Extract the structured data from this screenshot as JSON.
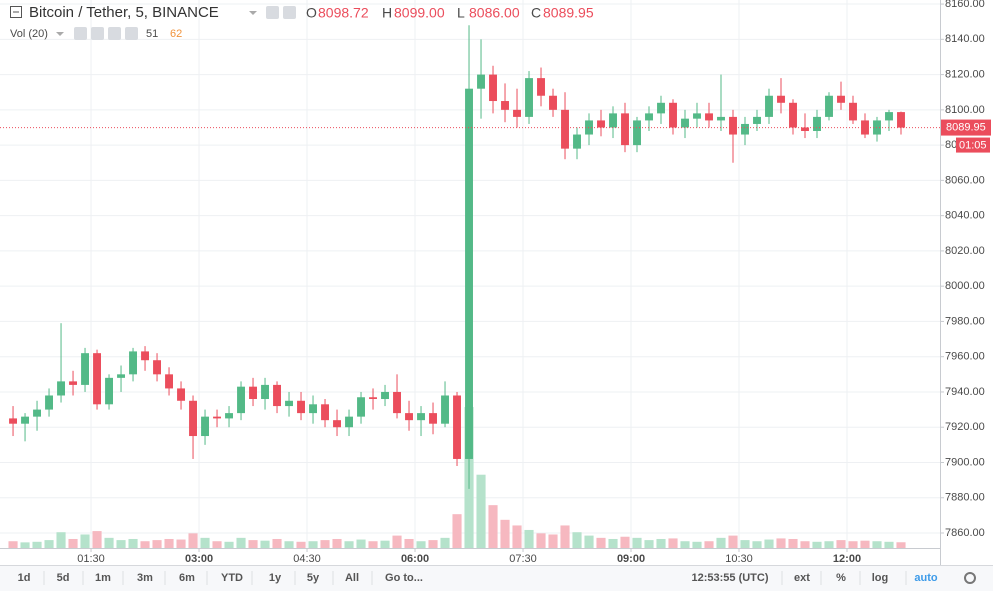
{
  "chart_data": {
    "type": "candlestick",
    "title": "Bitcoin / Tether, 5, BINANCE",
    "ohlc_names": [
      "O",
      "H",
      "L",
      "C"
    ],
    "ohlc_labels": [
      "8098.72",
      "8099.00",
      "8086.00",
      "8089.95"
    ],
    "volume_title": "Vol (20)",
    "volume_ma": 62,
    "countdown": "01:05",
    "up_color": "#53b987",
    "down_color": "#eb4d5c",
    "volume_up_color": "#b5e2cb",
    "volume_down_color": "#f6b8c0",
    "grid": true,
    "xlim": [
      18.3,
      797.5
    ],
    "xticks": [
      {
        "value": 90,
        "label": "01:30"
      },
      {
        "value": 180,
        "label": "03:00"
      },
      {
        "value": 270,
        "label": "04:30"
      },
      {
        "value": 360,
        "label": "06:00"
      },
      {
        "value": 450,
        "label": "07:30"
      },
      {
        "value": 540,
        "label": "09:00"
      },
      {
        "value": 630,
        "label": "10:30"
      },
      {
        "value": 720,
        "label": "12:00"
      }
    ],
    "ylim": [
      7851.5,
      8162.3
    ],
    "yticks": [
      {
        "value": 7860,
        "label": "7860.00"
      },
      {
        "value": 7880,
        "label": "7880.00"
      },
      {
        "value": 7900,
        "label": "7900.00"
      },
      {
        "value": 7920,
        "label": "7920.00"
      },
      {
        "value": 7940,
        "label": "7940.00"
      },
      {
        "value": 7960,
        "label": "7960.00"
      },
      {
        "value": 7980,
        "label": "7980.00"
      },
      {
        "value": 8000,
        "label": "8000.00"
      },
      {
        "value": 8020,
        "label": "8020.00"
      },
      {
        "value": 8040,
        "label": "8040.00"
      },
      {
        "value": 8060,
        "label": "8060.00"
      },
      {
        "value": 8080,
        "label": "8080.00"
      },
      {
        "value": 8100,
        "label": "8100.00"
      },
      {
        "value": 8120,
        "label": "8120.00"
      },
      {
        "value": 8140,
        "label": "8140.00"
      },
      {
        "value": 8160,
        "label": "8160.00"
      }
    ],
    "volume_ylim": [
      0,
      4860
    ],
    "x": [
      25,
      35,
      45,
      55,
      65,
      75,
      85,
      95,
      105,
      115,
      125,
      135,
      145,
      155,
      165,
      175,
      185,
      195,
      205,
      215,
      225,
      235,
      245,
      255,
      265,
      275,
      285,
      295,
      305,
      315,
      325,
      335,
      345,
      355,
      365,
      375,
      385,
      395,
      405,
      415,
      425,
      435,
      445,
      455,
      465,
      475,
      485,
      495,
      505,
      515,
      525,
      535,
      545,
      555,
      565,
      575,
      585,
      595,
      605,
      615,
      625,
      635,
      645,
      655,
      665,
      675,
      685,
      695,
      705,
      715,
      725,
      735,
      745,
      755,
      765
    ],
    "open": [
      7925,
      7922,
      7926,
      7930,
      7938,
      7946,
      7944,
      7962,
      7933,
      7948,
      7950,
      7963,
      7958,
      7950,
      7942,
      7935,
      7915,
      7926,
      7925,
      7928,
      7943,
      7936,
      7944,
      7932,
      7935,
      7928,
      7933,
      7924,
      7920,
      7926,
      7937,
      7936,
      7940,
      7928,
      7924,
      7928,
      7922,
      7938,
      7902,
      8112,
      8120,
      8105,
      8100,
      8096,
      8118,
      8108,
      8100,
      8078,
      8086,
      8094,
      8090,
      8098,
      8080,
      8094,
      8098,
      8104,
      8090,
      8095,
      8098,
      8094,
      8096,
      8086,
      8092,
      8096,
      8108,
      8104,
      8090,
      8088,
      8096,
      8108,
      8104,
      8094,
      8086,
      8094,
      8098.72
    ],
    "high": [
      7932,
      7928,
      7935,
      7942,
      7979,
      7952,
      7965,
      7964,
      7950,
      7955,
      7965,
      7966,
      7962,
      7954,
      7946,
      7938,
      7930,
      7930,
      7932,
      7946,
      7948,
      7948,
      7946,
      7940,
      7940,
      7938,
      7936,
      7930,
      7930,
      7940,
      7942,
      7944,
      7950,
      7935,
      7932,
      7934,
      7946,
      7940,
      8148,
      8140,
      8125,
      8115,
      8112,
      8122,
      8124,
      8112,
      8110,
      8090,
      8098,
      8100,
      8102,
      8104,
      8096,
      8102,
      8108,
      8106,
      8100,
      8104,
      8104,
      8120,
      8100,
      8096,
      8100,
      8112,
      8118,
      8106,
      8098,
      8100,
      8110,
      8116,
      8108,
      8098,
      8096,
      8100,
      8099
    ],
    "low": [
      7915,
      7912,
      7918,
      7926,
      7934,
      7938,
      7940,
      7930,
      7930,
      7940,
      7946,
      7952,
      7946,
      7938,
      7930,
      7902,
      7910,
      7920,
      7920,
      7924,
      7932,
      7930,
      7928,
      7926,
      7924,
      7922,
      7920,
      7915,
      7915,
      7922,
      7930,
      7932,
      7925,
      7918,
      7915,
      7916,
      7920,
      7898,
      7885,
      8095,
      8098,
      8093,
      8090,
      8092,
      8102,
      8096,
      8072,
      8072,
      8080,
      8085,
      8084,
      8076,
      8076,
      8088,
      8092,
      8086,
      8084,
      8090,
      8090,
      8088,
      8070,
      8080,
      8088,
      8092,
      8098,
      8086,
      8084,
      8084,
      8094,
      8100,
      8092,
      8084,
      8082,
      8088,
      8086
    ],
    "close": [
      7922,
      7926,
      7930,
      7938,
      7946,
      7944,
      7962,
      7933,
      7948,
      7950,
      7963,
      7958,
      7950,
      7942,
      7935,
      7915,
      7926,
      7925,
      7928,
      7943,
      7936,
      7944,
      7932,
      7935,
      7928,
      7933,
      7924,
      7920,
      7926,
      7937,
      7936,
      7940,
      7928,
      7924,
      7928,
      7922,
      7938,
      7902,
      8112,
      8120,
      8105,
      8100,
      8096,
      8118,
      8108,
      8100,
      8078,
      8086,
      8094,
      8090,
      8098,
      8080,
      8094,
      8098,
      8104,
      8090,
      8095,
      8098,
      8094,
      8096,
      8086,
      8092,
      8096,
      8108,
      8104,
      8090,
      8088,
      8096,
      8108,
      8104,
      8094,
      8086,
      8094,
      8098.72,
      8089.95
    ],
    "volume": [
      60,
      50,
      55,
      70,
      140,
      80,
      120,
      150,
      90,
      70,
      80,
      60,
      70,
      80,
      75,
      130,
      90,
      60,
      55,
      90,
      70,
      65,
      80,
      60,
      55,
      60,
      70,
      80,
      60,
      75,
      60,
      65,
      110,
      80,
      60,
      70,
      90,
      300,
      1250,
      650,
      380,
      250,
      200,
      160,
      130,
      120,
      200,
      140,
      110,
      90,
      80,
      100,
      90,
      70,
      80,
      85,
      60,
      55,
      60,
      90,
      110,
      70,
      60,
      75,
      85,
      80,
      60,
      55,
      60,
      70,
      60,
      65,
      60,
      55,
      51
    ]
  },
  "toolbar": {
    "ranges": [
      "1d",
      "5d",
      "1m",
      "3m",
      "6m",
      "YTD",
      "1y",
      "5y",
      "All"
    ],
    "goto": "Go to...",
    "time": "12:53:55 (UTC)",
    "options": [
      "ext",
      "%",
      "log",
      "auto"
    ]
  }
}
